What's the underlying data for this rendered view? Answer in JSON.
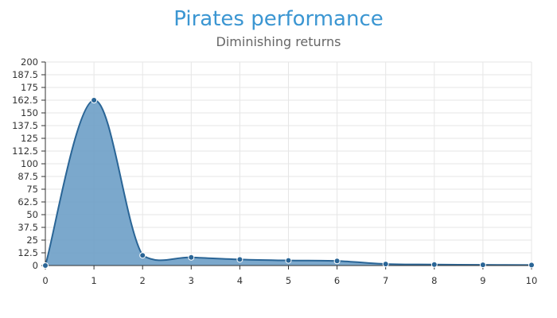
{
  "chart_data": {
    "type": "area",
    "title": "Pirates performance",
    "subtitle": "Diminishing returns",
    "xlabel": "",
    "ylabel": "",
    "x": [
      0,
      1,
      2,
      3,
      4,
      5,
      6,
      7,
      8,
      9,
      10
    ],
    "series": [
      {
        "values": [
          0,
          162.5,
          10,
          8,
          6,
          5,
          4.5,
          1.5,
          1,
          0.7,
          0.5
        ]
      }
    ],
    "xlim": [
      0,
      10
    ],
    "ylim": [
      0,
      200
    ],
    "x_ticks": [
      0,
      1,
      2,
      3,
      4,
      5,
      6,
      7,
      8,
      9,
      10
    ],
    "y_ticks": [
      0,
      12.5,
      25,
      37.5,
      50,
      62.5,
      75,
      87.5,
      100,
      112.5,
      125,
      137.5,
      150,
      162.5,
      175,
      187.5,
      200
    ],
    "x_tick_labels": [
      "0",
      "1",
      "2",
      "3",
      "4",
      "5",
      "6",
      "7",
      "8",
      "9",
      "10"
    ],
    "y_tick_labels": [
      "0",
      "12.5",
      "25",
      "37.5",
      "50",
      "62.5",
      "75",
      "87.5",
      "100",
      "112.5",
      "125",
      "137.5",
      "150",
      "162.5",
      "175",
      "187.5",
      "200"
    ],
    "grid": true,
    "legend": "none",
    "colors": {
      "line": "#2a6596",
      "fill": "#6d9fc6",
      "point": "#2a6596",
      "grid": "#e6e6e6",
      "axis": "#333333",
      "title": "#3b96d2",
      "subtitle": "#666666"
    }
  }
}
